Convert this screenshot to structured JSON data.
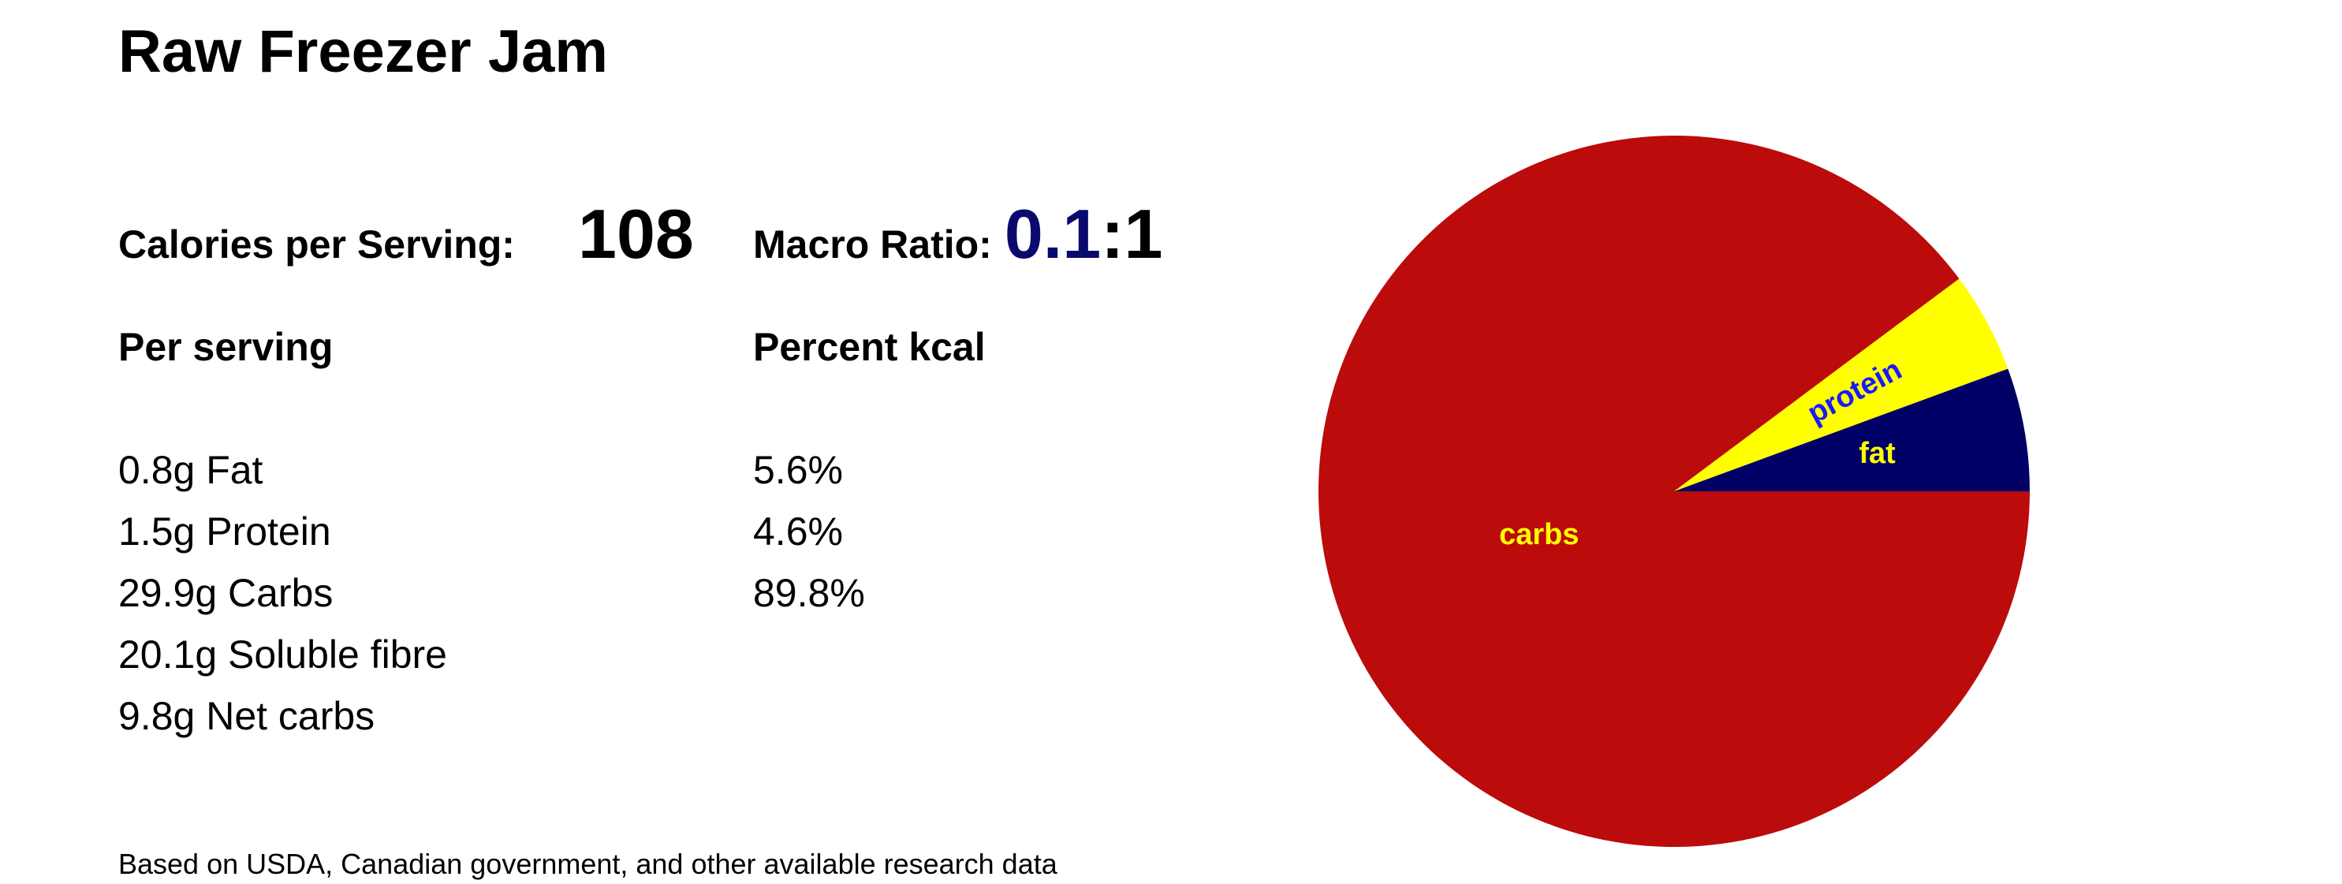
{
  "title": "Raw Freezer Jam",
  "summary": {
    "calories_label": "Calories per Serving:",
    "calories": 108,
    "ratio_label": "Macro Ratio:",
    "ratio_value": "0.1",
    "ratio_rest": ":1"
  },
  "per_serving": {
    "heading": "Per serving",
    "items": [
      "0.8g Fat",
      "1.5g Protein",
      "29.9g Carbs",
      "20.1g Soluble fibre",
      "9.8g Net carbs"
    ]
  },
  "percent_kcal": {
    "heading": "Percent kcal",
    "items": [
      "5.6%",
      "4.6%",
      "89.8%"
    ]
  },
  "footnote": "Based on USDA, Canadian government, and other available research data",
  "chart_data": {
    "type": "pie",
    "categories": [
      "fat",
      "protein",
      "carbs"
    ],
    "values": [
      5.6,
      4.6,
      89.8
    ],
    "colors": [
      "#000066",
      "#ffff00",
      "#bb0b0b"
    ],
    "label_colors": [
      "#ffff00",
      "#1a1aff",
      "#ffff00"
    ]
  }
}
